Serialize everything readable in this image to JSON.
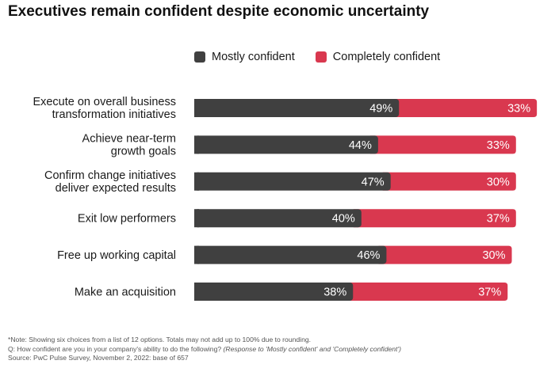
{
  "title": "Executives remain confident despite economic uncertainty",
  "colors": {
    "mostly": "#404040",
    "completely": "#d9384f"
  },
  "chart_data": {
    "type": "bar",
    "orientation": "horizontal",
    "stacked": true,
    "categories": [
      [
        "Execute on overall business",
        "transformation initiatives"
      ],
      [
        "Achieve near-term",
        "growth goals"
      ],
      [
        "Confirm change initiatives",
        "deliver expected results"
      ],
      [
        "Exit low performers"
      ],
      [
        "Free up working capital"
      ],
      [
        "Make an acquisition"
      ]
    ],
    "series": [
      {
        "name": "Mostly confident",
        "values": [
          49,
          44,
          47,
          40,
          46,
          38
        ]
      },
      {
        "name": "Completely confident",
        "values": [
          33,
          33,
          30,
          37,
          30,
          37
        ]
      }
    ],
    "value_suffix": "%",
    "legend": "top",
    "grid": false
  },
  "notes": {
    "line1": "*Note: Showing six choices from a list of 12 options. Totals may not add up to 100% due to rounding.",
    "line2_q": "Q: How confident are you in your company's ability to do the following?",
    "line2_response": "(Response to 'Mostly confident' and 'Completely confident')",
    "line3": "Source: PwC Pulse Survey, November 2, 2022: base of 657"
  }
}
